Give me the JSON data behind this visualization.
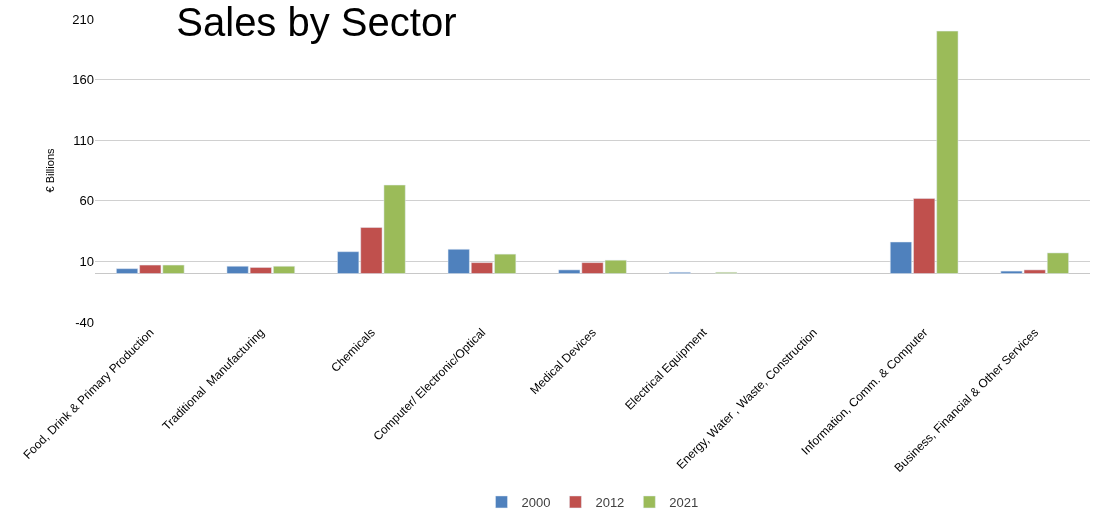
{
  "chart_data": {
    "type": "bar",
    "title": "Sales by Sector",
    "ylabel": "€ Billions",
    "categories": [
      "Food, Drink & Primary Production",
      "Traditional  Manufacturing",
      "Chemicals",
      "Computer/ Electronic/Optical",
      "Medical Devices",
      "Electrical Equipment",
      "Energy, Water , Waste, Construction",
      "Information, Comm. & Computer",
      "Business, Financial & Other Services"
    ],
    "series": [
      {
        "name": "2000",
        "color": "#4f81bd",
        "values": [
          4,
          6,
          18,
          20,
          3,
          1,
          null,
          26,
          2
        ]
      },
      {
        "name": "2012",
        "color": "#c0504d",
        "values": [
          7,
          5,
          38,
          9,
          9,
          null,
          null,
          62,
          3
        ]
      },
      {
        "name": "2021",
        "color": "#9bbb59",
        "values": [
          7,
          6,
          73,
          16,
          11,
          1,
          null,
          200,
          17
        ]
      }
    ],
    "ylim": [
      -40,
      210
    ],
    "yticks": [
      -40,
      10,
      60,
      110,
      160,
      210
    ],
    "grid": "y",
    "legend": "bottom"
  }
}
